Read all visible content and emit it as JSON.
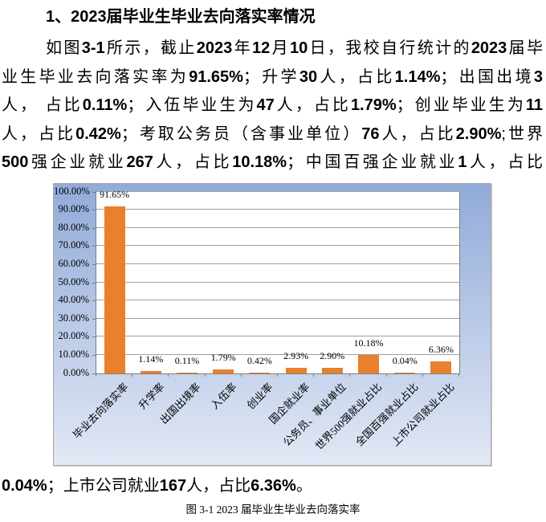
{
  "heading": "1、2023届毕业生毕业去向落实率情况",
  "paragraph": {
    "lines_before_chart": [
      [
        {
          "t": "如图",
          "b": false
        },
        {
          "t": "3-1",
          "b": true
        },
        {
          "t": "所示，截止",
          "b": false
        },
        {
          "t": "2023",
          "b": true
        },
        {
          "t": "年",
          "b": false
        },
        {
          "t": "12",
          "b": true
        },
        {
          "t": "月",
          "b": false
        },
        {
          "t": "10",
          "b": true
        },
        {
          "t": "日，我校自行统计的",
          "b": false
        },
        {
          "t": "2023",
          "b": true
        },
        {
          "t": "届毕",
          "b": false
        }
      ],
      [
        {
          "t": "业生毕业去向落实率为",
          "b": false
        },
        {
          "t": "91.65%",
          "b": true
        },
        {
          "t": "；升学",
          "b": false
        },
        {
          "t": "30",
          "b": true
        },
        {
          "t": "人，占比",
          "b": false
        },
        {
          "t": "1.14%",
          "b": true
        },
        {
          "t": "；出国出境",
          "b": false
        },
        {
          "t": "3",
          "b": true
        }
      ],
      [
        {
          "t": "人， 占比",
          "b": false
        },
        {
          "t": "0.11%",
          "b": true
        },
        {
          "t": "；入伍毕业生为",
          "b": false
        },
        {
          "t": "47",
          "b": true
        },
        {
          "t": "人，占比",
          "b": false
        },
        {
          "t": "1.79%",
          "b": true
        },
        {
          "t": "；创业毕业生为",
          "b": false
        },
        {
          "t": "11",
          "b": true
        }
      ],
      [
        {
          "t": "人，占比",
          "b": false
        },
        {
          "t": "0.42%",
          "b": true
        },
        {
          "t": "；考取公务员（含事业单位）",
          "b": false
        },
        {
          "t": "76",
          "b": true
        },
        {
          "t": "人，占比",
          "b": false
        },
        {
          "t": "2.90%",
          "b": true
        },
        {
          "t": ";世界",
          "b": false
        }
      ],
      [
        {
          "t": "500",
          "b": true
        },
        {
          "t": "强企业就业",
          "b": false
        },
        {
          "t": "267",
          "b": true
        },
        {
          "t": "人，占比",
          "b": false
        },
        {
          "t": "10.18%",
          "b": true
        },
        {
          "t": "；中国百强企业就业",
          "b": false
        },
        {
          "t": "1",
          "b": true
        },
        {
          "t": "人，占比",
          "b": false
        }
      ]
    ],
    "line_after_chart": [
      {
        "t": "0.04%",
        "b": true
      },
      {
        "t": "；上市公司就业",
        "b": false
      },
      {
        "t": "167",
        "b": true
      },
      {
        "t": "人，占比",
        "b": false
      },
      {
        "t": "6.36%",
        "b": true
      },
      {
        "t": "。",
        "b": false
      }
    ]
  },
  "caption": "图 3-1 2023 届毕业生毕业去向落实率",
  "chart_data": {
    "type": "bar",
    "title": "",
    "xlabel": "",
    "ylabel": "",
    "categories": [
      "毕业去向落实率",
      "升学率",
      "出国出境率",
      "入伍率",
      "创业率",
      "国企就业率",
      "公务员、事业单位",
      "世界500强就业占比",
      "全国百强就业占比",
      "上市公司就业占比"
    ],
    "values": [
      91.65,
      1.14,
      0.11,
      1.79,
      0.42,
      2.93,
      2.9,
      10.18,
      0.04,
      6.36
    ],
    "value_labels": [
      "91.65%",
      "1.14%",
      "0.11%",
      "1.79%",
      "0.42%",
      "2.93%",
      "2.90%",
      "10.18%",
      "0.04%",
      "6.36%"
    ],
    "yticks": [
      "0.00%",
      "10.00%",
      "20.00%",
      "30.00%",
      "40.00%",
      "50.00%",
      "60.00%",
      "70.00%",
      "80.00%",
      "90.00%",
      "100.00%"
    ],
    "ylim": [
      0,
      100
    ],
    "grid": true,
    "legend": false,
    "bar_color": "#e8802d",
    "plot_bg": "#ffffff",
    "gridline_color": "#a0a0a0",
    "chart_bg_gradient_top": "#91abd9",
    "chart_bg_gradient_bottom": "#e2e8f5"
  }
}
